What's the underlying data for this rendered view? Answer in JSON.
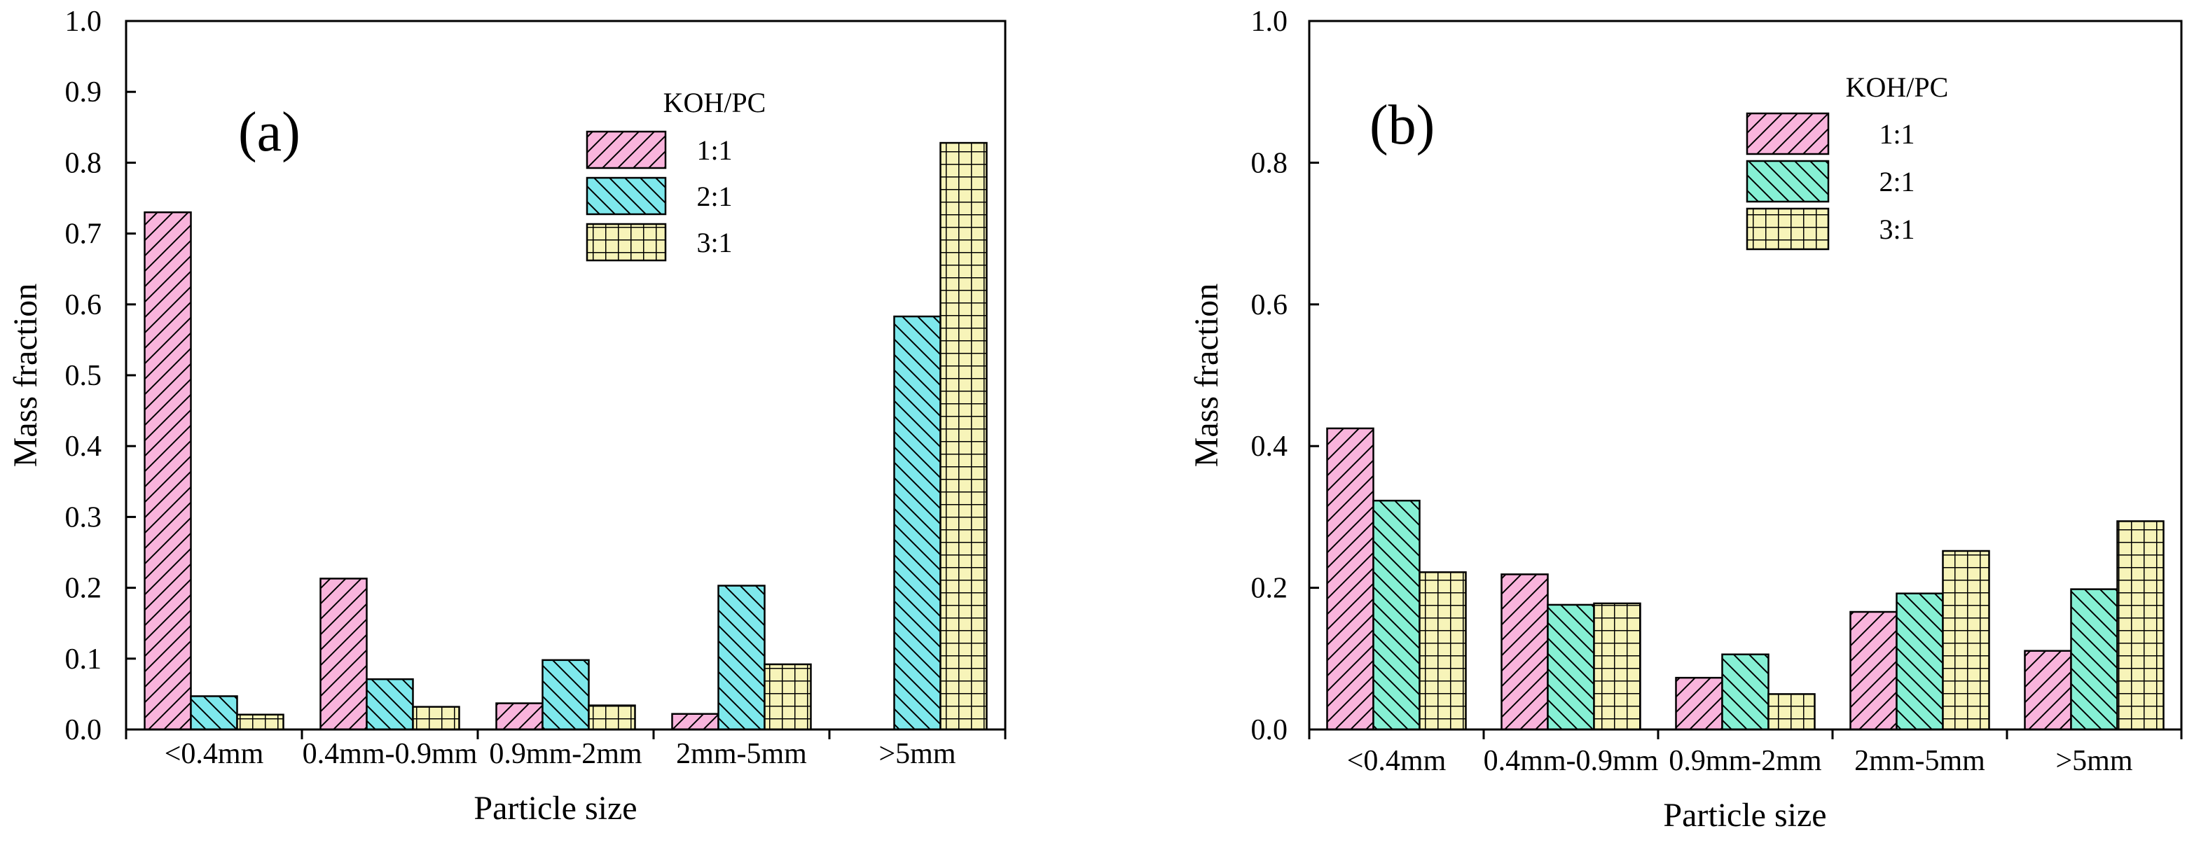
{
  "chart_data": [
    {
      "type": "bar",
      "panel_label": "(a)",
      "xlabel": "Particle size",
      "ylabel": "Mass fraction",
      "ylim": [
        0,
        1.0
      ],
      "ytick_values": [
        0.0,
        0.1,
        0.2,
        0.3,
        0.4,
        0.5,
        0.6,
        0.7,
        0.8,
        0.9,
        1.0
      ],
      "ytick_labels": [
        "0.0",
        "0.1",
        "0.2",
        "0.3",
        "0.4",
        "0.5",
        "0.6",
        "0.7",
        "0.8",
        "0.9",
        "1.0"
      ],
      "categories": [
        "<0.4mm",
        "0.4mm-0.9mm",
        "0.9mm-2mm",
        "2mm-5mm",
        ">5mm"
      ],
      "legend_title": "KOH/PC",
      "legend_position": "top-right",
      "series": [
        {
          "name": "1:1",
          "values": [
            0.73,
            0.213,
            0.037,
            0.022,
            0.0
          ],
          "color": "#f9b4dc",
          "pattern": "diag-right"
        },
        {
          "name": "2:1",
          "values": [
            0.047,
            0.071,
            0.098,
            0.203,
            0.583
          ],
          "color": "#7ee8ec",
          "pattern": "diag-left"
        },
        {
          "name": "3:1",
          "values": [
            0.021,
            0.032,
            0.034,
            0.092,
            0.828
          ],
          "color": "#f7f4b9",
          "pattern": "grid"
        }
      ]
    },
    {
      "type": "bar",
      "panel_label": "(b)",
      "xlabel": "Particle size",
      "ylabel": "Mass fraction",
      "ylim": [
        0,
        1.0
      ],
      "ytick_values": [
        0.0,
        0.2,
        0.4,
        0.6,
        0.8,
        1.0
      ],
      "ytick_labels": [
        "0.0",
        "0.2",
        "0.4",
        "0.6",
        "0.8",
        "1.0"
      ],
      "categories": [
        "<0.4mm",
        "0.4mm-0.9mm",
        "0.9mm-2mm",
        "2mm-5mm",
        ">5mm"
      ],
      "legend_title": "KOH/PC",
      "legend_position": "top-right",
      "series": [
        {
          "name": "1:1",
          "values": [
            0.425,
            0.219,
            0.073,
            0.166,
            0.111
          ],
          "color": "#f9b4dc",
          "pattern": "diag-right"
        },
        {
          "name": "2:1",
          "values": [
            0.323,
            0.176,
            0.106,
            0.192,
            0.198
          ],
          "color": "#86f0d4",
          "pattern": "diag-left"
        },
        {
          "name": "3:1",
          "values": [
            0.222,
            0.178,
            0.05,
            0.252,
            0.294
          ],
          "color": "#f7f4b9",
          "pattern": "grid"
        }
      ]
    }
  ]
}
